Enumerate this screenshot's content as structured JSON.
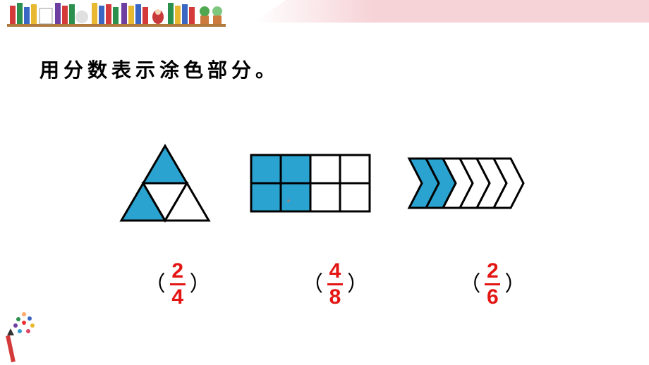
{
  "colors": {
    "accent_blue": "#2aa3d0",
    "answer_red": "#e31613",
    "text_black": "#000000",
    "shelf_brown": "#b07a3d",
    "pink": "#f6d3d7"
  },
  "typography": {
    "instruction_fontsize": 28,
    "instruction_weight": "bold",
    "instruction_letterspacing": 6,
    "answer_fontsize": 30
  },
  "instruction": "用分数表示涂色部分。",
  "figures": [
    {
      "type": "triangle_4parts",
      "total_parts": 4,
      "shaded_parts": 2,
      "shaded_indices": [
        0,
        1
      ],
      "fill": "#2aa3d0",
      "stroke": "#000000",
      "answer": {
        "numerator": "2",
        "denominator": "4"
      }
    },
    {
      "type": "grid_2x4",
      "rows": 2,
      "cols": 4,
      "total_parts": 8,
      "shaded_parts": 4,
      "shaded_cells": [
        [
          0,
          0
        ],
        [
          0,
          1
        ],
        [
          1,
          0
        ],
        [
          1,
          1
        ]
      ],
      "fill": "#2aa3d0",
      "stroke": "#000000",
      "answer": {
        "numerator": "4",
        "denominator": "8"
      }
    },
    {
      "type": "chevron_strip",
      "total_parts": 6,
      "shaded_parts": 2,
      "shaded_indices": [
        0,
        1
      ],
      "fill": "#2aa3d0",
      "stroke": "#000000",
      "answer": {
        "numerator": "2",
        "denominator": "6"
      }
    }
  ]
}
